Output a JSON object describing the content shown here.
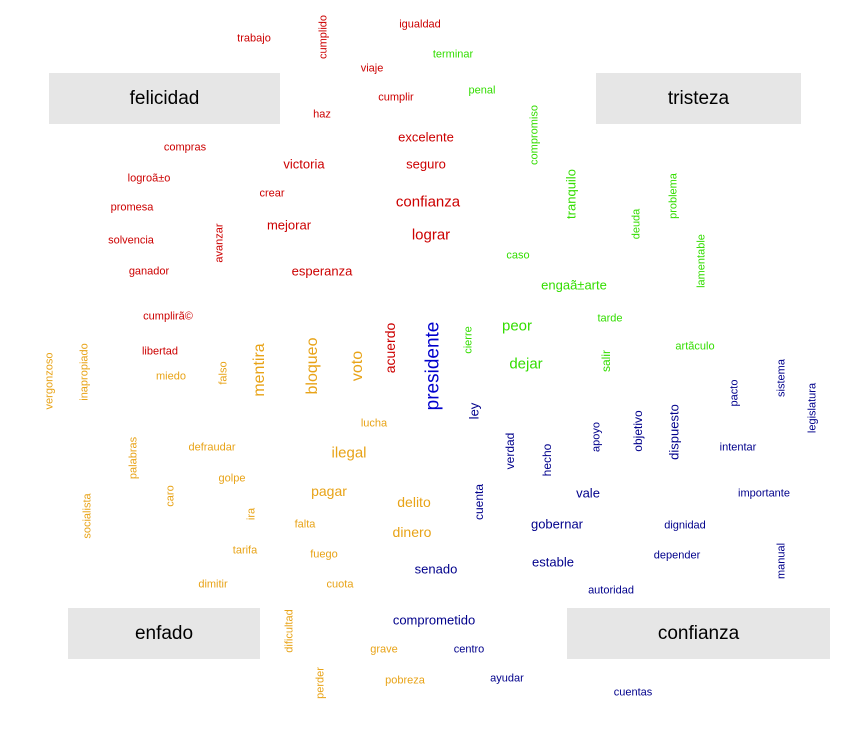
{
  "colors": {
    "felicidad": "#cc0000",
    "tristeza": "#33dd00",
    "enfado": "#e8a317",
    "confianza": "#00008b",
    "emphasis": "#0000cd",
    "box_fill": "#e6e6e6"
  },
  "categories": {
    "felicidad": "felicidad",
    "tristeza": "tristeza",
    "enfado": "enfado",
    "confianza": "confianza"
  },
  "words": [
    {
      "t": "trabajo",
      "g": "felicidad"
    },
    {
      "t": "cumplido",
      "g": "felicidad"
    },
    {
      "t": "igualdad",
      "g": "felicidad"
    },
    {
      "t": "viaje",
      "g": "felicidad"
    },
    {
      "t": "cumplir",
      "g": "felicidad"
    },
    {
      "t": "haz",
      "g": "felicidad"
    },
    {
      "t": "excelente",
      "g": "felicidad"
    },
    {
      "t": "compras",
      "g": "felicidad"
    },
    {
      "t": "victoria",
      "g": "felicidad"
    },
    {
      "t": "seguro",
      "g": "felicidad"
    },
    {
      "t": "logroã±o",
      "g": "felicidad"
    },
    {
      "t": "crear",
      "g": "felicidad"
    },
    {
      "t": "confianza",
      "g": "felicidad"
    },
    {
      "t": "promesa",
      "g": "felicidad"
    },
    {
      "t": "avanzar",
      "g": "felicidad"
    },
    {
      "t": "mejorar",
      "g": "felicidad"
    },
    {
      "t": "lograr",
      "g": "felicidad"
    },
    {
      "t": "solvencia",
      "g": "felicidad"
    },
    {
      "t": "ganador",
      "g": "felicidad"
    },
    {
      "t": "esperanza",
      "g": "felicidad"
    },
    {
      "t": "cumplirã©",
      "g": "felicidad"
    },
    {
      "t": "libertad",
      "g": "felicidad"
    },
    {
      "t": "acuerdo",
      "g": "felicidad"
    },
    {
      "t": "terminar",
      "g": "tristeza"
    },
    {
      "t": "penal",
      "g": "tristeza"
    },
    {
      "t": "compromiso",
      "g": "tristeza"
    },
    {
      "t": "tranquilo",
      "g": "tristeza"
    },
    {
      "t": "problema",
      "g": "tristeza"
    },
    {
      "t": "deuda",
      "g": "tristeza"
    },
    {
      "t": "lamentable",
      "g": "tristeza"
    },
    {
      "t": "caso",
      "g": "tristeza"
    },
    {
      "t": "engaã±arte",
      "g": "tristeza"
    },
    {
      "t": "tarde",
      "g": "tristeza"
    },
    {
      "t": "peor",
      "g": "tristeza"
    },
    {
      "t": "artã­culo",
      "g": "tristeza"
    },
    {
      "t": "cierre",
      "g": "tristeza"
    },
    {
      "t": "dejar",
      "g": "tristeza"
    },
    {
      "t": "salir",
      "g": "tristeza"
    },
    {
      "t": "vergonzoso",
      "g": "enfado"
    },
    {
      "t": "inapropiado",
      "g": "enfado"
    },
    {
      "t": "miedo",
      "g": "enfado"
    },
    {
      "t": "falso",
      "g": "enfado"
    },
    {
      "t": "mentira",
      "g": "enfado"
    },
    {
      "t": "bloqueo",
      "g": "enfado"
    },
    {
      "t": "voto",
      "g": "enfado"
    },
    {
      "t": "lucha",
      "g": "enfado"
    },
    {
      "t": "palabras",
      "g": "enfado"
    },
    {
      "t": "defraudar",
      "g": "enfado"
    },
    {
      "t": "ilegal",
      "g": "enfado"
    },
    {
      "t": "golpe",
      "g": "enfado"
    },
    {
      "t": "caro",
      "g": "enfado"
    },
    {
      "t": "socialista",
      "g": "enfado"
    },
    {
      "t": "pagar",
      "g": "enfado"
    },
    {
      "t": "delito",
      "g": "enfado"
    },
    {
      "t": "ira",
      "g": "enfado"
    },
    {
      "t": "falta",
      "g": "enfado"
    },
    {
      "t": "dinero",
      "g": "enfado"
    },
    {
      "t": "tarifa",
      "g": "enfado"
    },
    {
      "t": "fuego",
      "g": "enfado"
    },
    {
      "t": "dimitir",
      "g": "enfado"
    },
    {
      "t": "cuota",
      "g": "enfado"
    },
    {
      "t": "dificultad",
      "g": "enfado"
    },
    {
      "t": "grave",
      "g": "enfado"
    },
    {
      "t": "pobreza",
      "g": "enfado"
    },
    {
      "t": "perder",
      "g": "enfado"
    },
    {
      "t": "presidente",
      "g": "emphasis"
    },
    {
      "t": "ley",
      "g": "confianza"
    },
    {
      "t": "verdad",
      "g": "confianza"
    },
    {
      "t": "hecho",
      "g": "confianza"
    },
    {
      "t": "apoyo",
      "g": "confianza"
    },
    {
      "t": "objetivo",
      "g": "confianza"
    },
    {
      "t": "dispuesto",
      "g": "confianza"
    },
    {
      "t": "pacto",
      "g": "confianza"
    },
    {
      "t": "sistema",
      "g": "confianza"
    },
    {
      "t": "legislatura",
      "g": "confianza"
    },
    {
      "t": "intentar",
      "g": "confianza"
    },
    {
      "t": "vale",
      "g": "confianza"
    },
    {
      "t": "importante",
      "g": "confianza"
    },
    {
      "t": "cuenta",
      "g": "confianza"
    },
    {
      "t": "gobernar",
      "g": "confianza"
    },
    {
      "t": "dignidad",
      "g": "confianza"
    },
    {
      "t": "estable",
      "g": "confianza"
    },
    {
      "t": "depender",
      "g": "confianza"
    },
    {
      "t": "manual",
      "g": "confianza"
    },
    {
      "t": "senado",
      "g": "confianza"
    },
    {
      "t": "autoridad",
      "g": "confianza"
    },
    {
      "t": "comprometido",
      "g": "confianza"
    },
    {
      "t": "centro",
      "g": "confianza"
    },
    {
      "t": "ayudar",
      "g": "confianza"
    },
    {
      "t": "cuentas",
      "g": "confianza"
    }
  ]
}
